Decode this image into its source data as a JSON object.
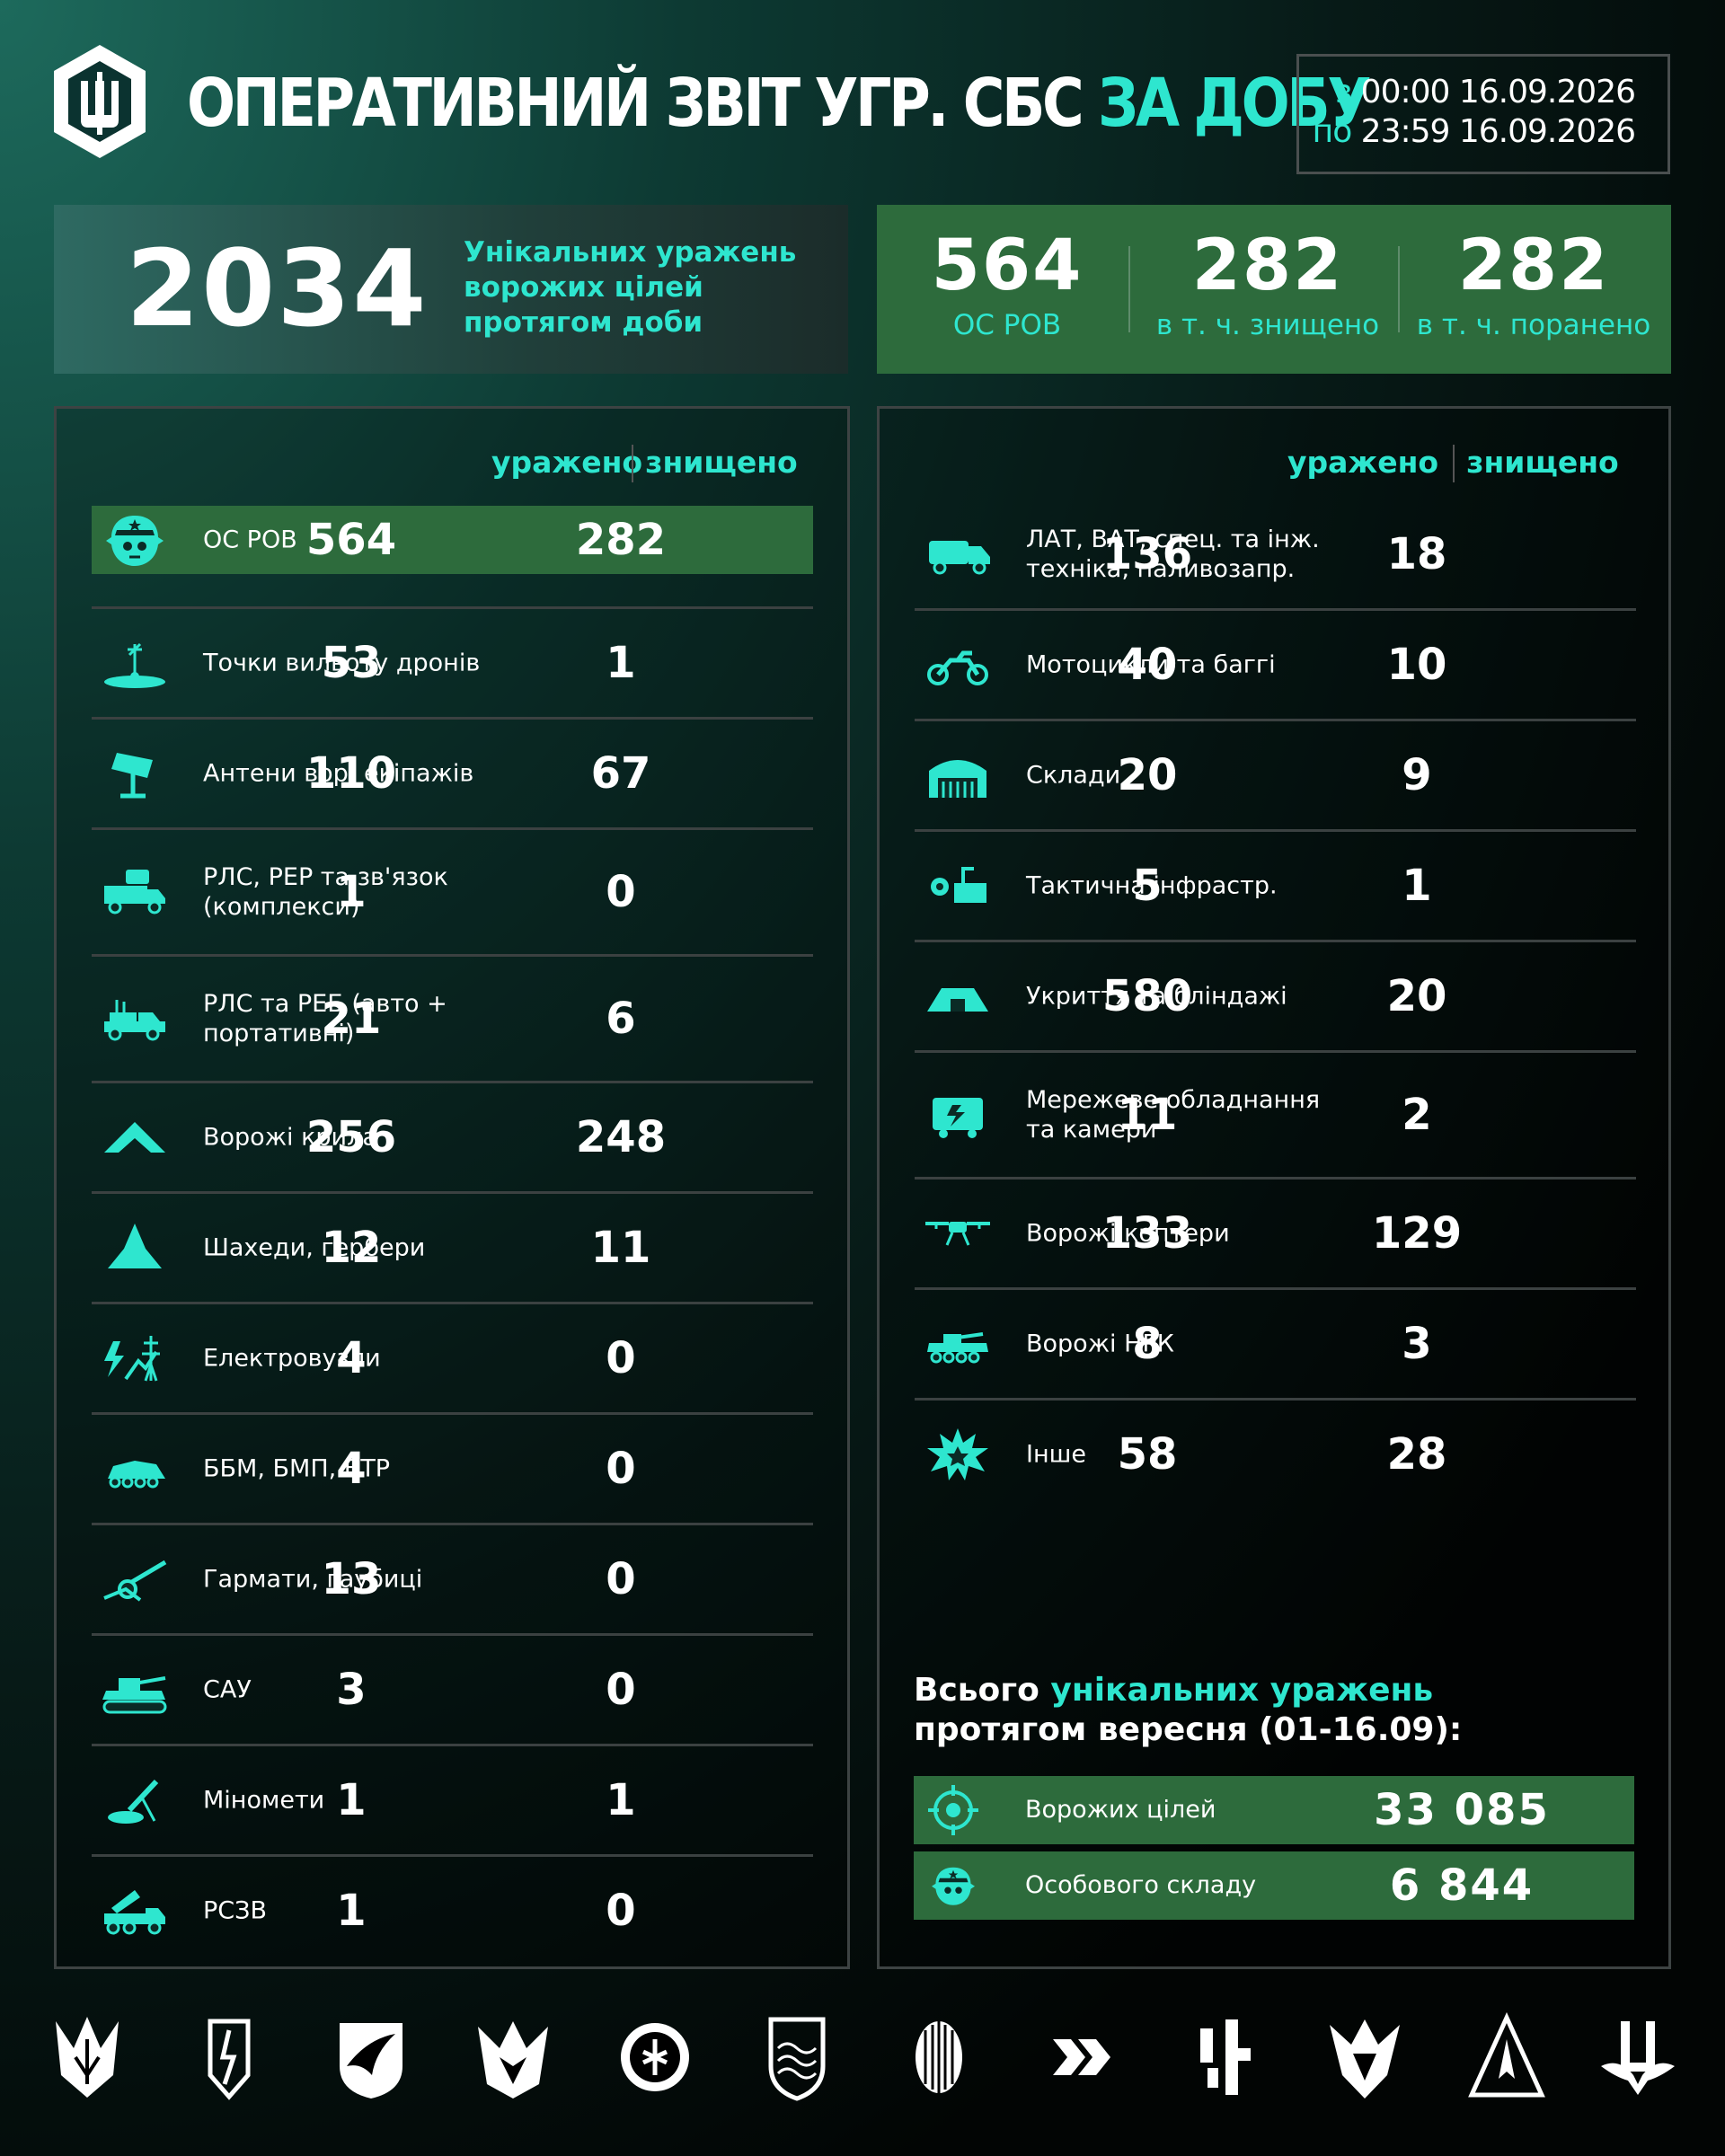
{
  "header": {
    "title_main": "ОПЕРАТИВНИЙ ЗВІТ УГР. СБС",
    "title_highlight": "ЗА ДОБУ",
    "from_label": "з",
    "from_time": "00:00",
    "from_date": "16.09.2026",
    "to_label": "по",
    "to_time": "23:59",
    "to_date": "16.09.2026"
  },
  "unique": {
    "value": "2034",
    "description": "Унікальних уражень\nворожих цілей\nпротягом доби"
  },
  "personnel": [
    {
      "value": "564",
      "label": "ОС РОВ"
    },
    {
      "value": "282",
      "label": "в т. ч. знищено"
    },
    {
      "value": "282",
      "label": "в т. ч. поранено"
    }
  ],
  "columns": {
    "hit": "уражено",
    "destroyed": "знищено"
  },
  "left_rows": [
    {
      "icon": "soldier-helmet-icon",
      "name": "ОС РОВ",
      "hit": "564",
      "destroyed": "282",
      "highlight": true
    },
    {
      "icon": "drone-launch-point-icon",
      "name": "Точки вильоту дронів",
      "hit": "53",
      "destroyed": "1"
    },
    {
      "icon": "antenna-icon",
      "name": "Антени вор. екіпажів",
      "hit": "110",
      "destroyed": "67"
    },
    {
      "icon": "radar-truck-icon",
      "name": "РЛС, РЕР та зв'язок\n(комплекси)",
      "hit": "1",
      "destroyed": "0"
    },
    {
      "icon": "ew-vehicle-icon",
      "name": "РЛС та РЕБ (авто +\nпортативні)",
      "hit": "21",
      "destroyed": "6"
    },
    {
      "icon": "fixed-wing-drone-icon",
      "name": "Ворожі крила",
      "hit": "256",
      "destroyed": "248"
    },
    {
      "icon": "shahed-icon",
      "name": "Шахеди, гербери",
      "hit": "12",
      "destroyed": "11"
    },
    {
      "icon": "power-node-icon",
      "name": "Електровузли",
      "hit": "4",
      "destroyed": "0"
    },
    {
      "icon": "apc-icon",
      "name": "ББМ, БМП, БТР",
      "hit": "4",
      "destroyed": "0"
    },
    {
      "icon": "howitzer-icon",
      "name": "Гармати, гаубиці",
      "hit": "13",
      "destroyed": "0"
    },
    {
      "icon": "spg-icon",
      "name": "САУ",
      "hit": "3",
      "destroyed": "0"
    },
    {
      "icon": "mortar-icon",
      "name": "Міномети",
      "hit": "1",
      "destroyed": "1"
    },
    {
      "icon": "mlrs-icon",
      "name": "РСЗВ",
      "hit": "1",
      "destroyed": "0"
    }
  ],
  "right_rows": [
    {
      "icon": "truck-icon",
      "name": "ЛАТ, ВАТ, спец. та інж.\nтехніка, паливозапр.",
      "hit": "136",
      "destroyed": "18"
    },
    {
      "icon": "motorcycle-icon",
      "name": "Мотоцикли та баггі",
      "hit": "40",
      "destroyed": "10"
    },
    {
      "icon": "warehouse-icon",
      "name": "Склади",
      "hit": "20",
      "destroyed": "9"
    },
    {
      "icon": "infrastructure-icon",
      "name": "Тактична інфрастр.",
      "hit": "5",
      "destroyed": "1"
    },
    {
      "icon": "bunker-icon",
      "name": "Укриття та бліндажі",
      "hit": "580",
      "destroyed": "20"
    },
    {
      "icon": "network-equipment-icon",
      "name": "Мережеве обладнання\nта камери",
      "hit": "11",
      "destroyed": "2"
    },
    {
      "icon": "quadcopter-icon",
      "name": "Ворожі коптери",
      "hit": "133",
      "destroyed": "129"
    },
    {
      "icon": "ugv-icon",
      "name": "Ворожі НРК",
      "hit": "8",
      "destroyed": "3"
    },
    {
      "icon": "explosion-icon",
      "name": "Інше",
      "hit": "58",
      "destroyed": "28"
    }
  ],
  "totals": {
    "title_prefix": "Всього",
    "title_highlight": "унікальних уражень",
    "title_suffix": "протягом вересня (01-16.09):",
    "rows": [
      {
        "icon": "target-icon",
        "name": "Ворожих цілей",
        "value": "33 085"
      },
      {
        "icon": "soldier-helmet-icon",
        "name": "Особового складу",
        "value": "6 844"
      }
    ]
  },
  "colors": {
    "accent": "#2ee6cf",
    "highlight_green": "#2d6b3c",
    "panel_border": "#3d4343"
  }
}
